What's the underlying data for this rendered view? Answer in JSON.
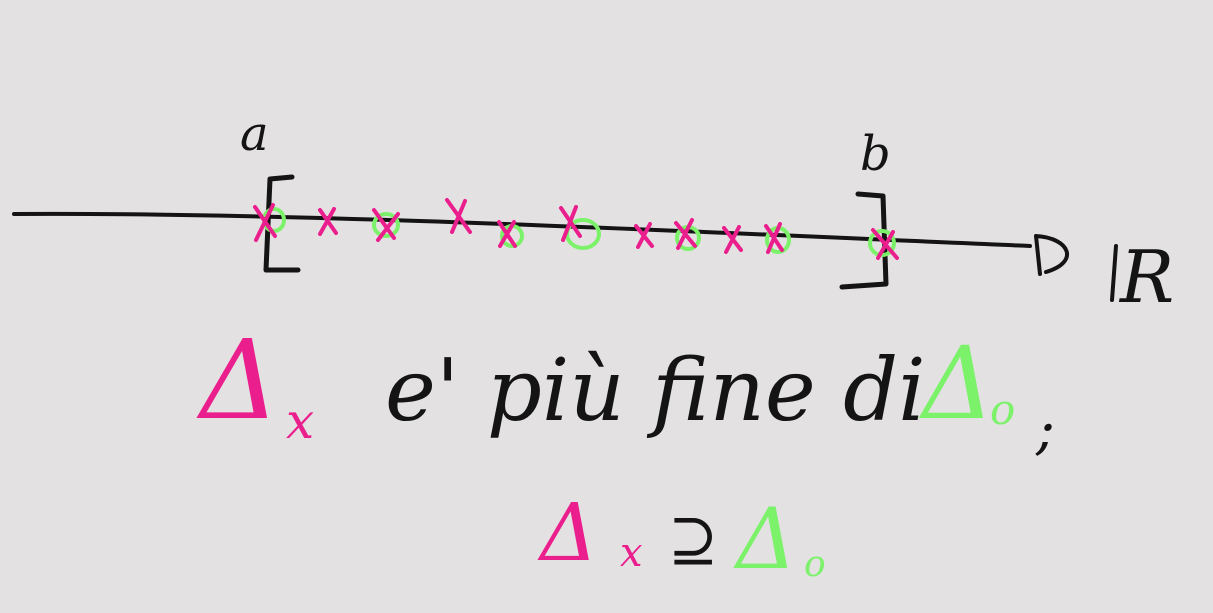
{
  "colors": {
    "background": "#e3e1e2",
    "ink": "#141414",
    "pink": "#ea1e8c",
    "green": "#7cf26a"
  },
  "axis": {
    "label_a": "a",
    "label_b": "b",
    "label_R": "R"
  },
  "sentence": {
    "delta_x": "Δ",
    "sub_x": "x",
    "text": "e' più fine di",
    "delta_o": "Δ",
    "sub_o": "o",
    "semicolon": ";"
  },
  "relation": {
    "delta_x": "Δ",
    "sub_x": "x",
    "symbol": "⊇",
    "delta_o": "Δ",
    "sub_o": "o"
  },
  "marks": {
    "crosses": 11,
    "circles": 7
  }
}
